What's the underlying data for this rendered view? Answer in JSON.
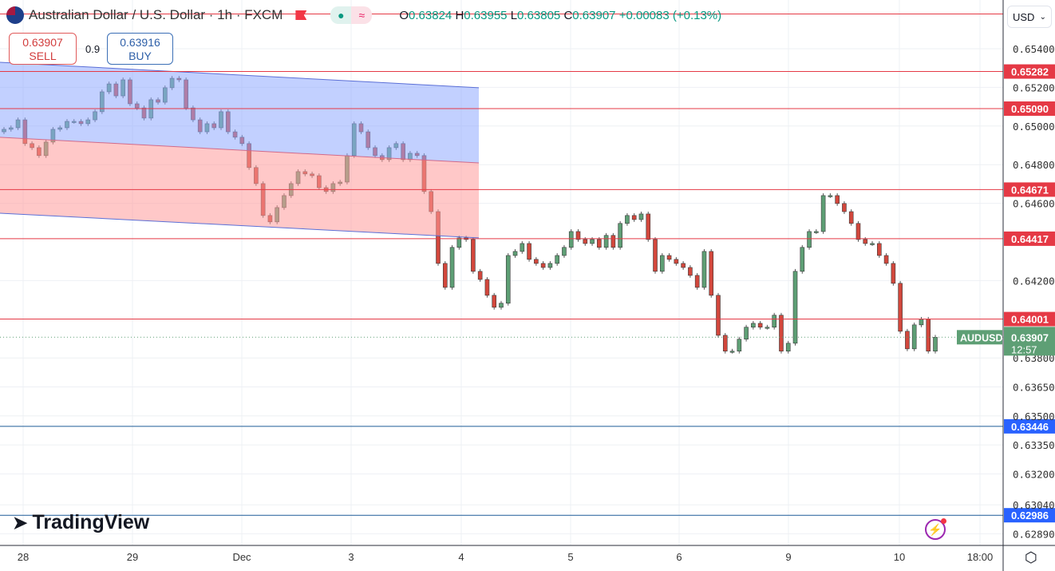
{
  "header": {
    "title": "Australian Dollar / U.S. Dollar · 1h · FXCM",
    "ohlc": {
      "o_label": "O",
      "o": "0.63824",
      "h_label": "H",
      "h": "0.63955",
      "l_label": "L",
      "l": "0.63805",
      "c_label": "C",
      "c": "0.63907",
      "change": "+0.00083 (+0.13%)"
    },
    "status_dot": "●",
    "status_wave": "≈"
  },
  "trade": {
    "sell_price": "0.63907",
    "sell_label": "SELL",
    "spread": "0.9",
    "buy_price": "0.63916",
    "buy_label": "BUY"
  },
  "currency_selector": "USD",
  "branding": "TradingView",
  "icons": {
    "flag": "au-us-flag-icon",
    "bolt": "lightning-icon",
    "settings": "settings-hexagon-icon",
    "dropdown": "chevron-down-icon"
  },
  "chart_data": {
    "type": "candlestick",
    "symbol": "AUDUSD",
    "interval": "1h",
    "colors": {
      "up": "#5e9f75",
      "down": "#d2473c",
      "support": "#2962ff",
      "resistance": "#e53945",
      "last": "#5e9f75"
    },
    "ylim": [
      0.6283,
      0.6561
    ],
    "y_ticks": [
      "0.65400",
      "0.65200",
      "0.65000",
      "0.64800",
      "0.64600",
      "0.64200",
      "0.63800",
      "0.63650",
      "0.63500",
      "0.63350",
      "0.63200",
      "0.63040",
      "0.62890"
    ],
    "x_ticks": [
      "28",
      "29",
      "Dec",
      "3",
      "4",
      "5",
      "6",
      "9",
      "10",
      "18:00"
    ],
    "grid": true,
    "first_open": 0.6497,
    "closes": [
      0.64983,
      0.64991,
      0.65032,
      0.64909,
      0.64888,
      0.64847,
      0.64917,
      0.64983,
      0.64991,
      0.65024,
      0.65024,
      0.65012,
      0.65032,
      0.65074,
      0.65177,
      0.65218,
      0.65156,
      0.65239,
      0.65115,
      0.65094,
      0.65041,
      0.65136,
      0.65123,
      0.65198,
      0.65247,
      0.65239,
      0.65094,
      0.65032,
      0.6497,
      0.65012,
      0.64991,
      0.65074,
      0.6497,
      0.64942,
      0.64909,
      0.64785,
      0.64702,
      0.64537,
      0.64504,
      0.64578,
      0.6464,
      0.64702,
      0.64764,
      0.64752,
      0.64743,
      0.64681,
      0.64661,
      0.64702,
      0.6471,
      0.64847,
      0.65012,
      0.6497,
      0.64888,
      0.64847,
      0.64826,
      0.64888,
      0.64909,
      0.64826,
      0.64859,
      0.64847,
      0.64661,
      0.64557,
      0.64289,
      0.64165,
      0.64372,
      0.64421,
      0.64413,
      0.64248,
      0.64206,
      0.64124,
      0.64062,
      0.64083,
      0.6433,
      0.64351,
      0.64392,
      0.6431,
      0.64289,
      0.64268,
      0.64289,
      0.6433,
      0.64372,
      0.64454,
      0.64413,
      0.64392,
      0.64413,
      0.64372,
      0.64434,
      0.64372,
      0.64496,
      0.64537,
      0.64516,
      0.64545,
      0.64413,
      0.64248,
      0.6433,
      0.6431,
      0.64289,
      0.64268,
      0.64227,
      0.64165,
      0.64351,
      0.64124,
      0.63917,
      0.63835,
      0.63835,
      0.63897,
      0.63959,
      0.63979,
      0.63959,
      0.63959,
      0.64021,
      0.63835,
      0.63876,
      0.64248,
      0.64372,
      0.64454,
      0.64454,
      0.6464,
      0.6464,
      0.64599,
      0.64557,
      0.64496,
      0.64413,
      0.64392,
      0.64392,
      0.6433,
      0.64289,
      0.64186,
      0.63938,
      0.63847,
      0.63971,
      0.64,
      0.63835,
      0.63907
    ],
    "horizontal_levels": [
      {
        "price": 0.6558,
        "label": "",
        "kind": "resistance"
      },
      {
        "price": 0.65282,
        "label": "0.65282",
        "kind": "resistance"
      },
      {
        "price": 0.6509,
        "label": "0.65090",
        "kind": "resistance"
      },
      {
        "price": 0.64671,
        "label": "0.64671",
        "kind": "resistance"
      },
      {
        "price": 0.64417,
        "label": "0.64417",
        "kind": "resistance"
      },
      {
        "price": 0.64001,
        "label": "0.64001",
        "kind": "resistance"
      },
      {
        "price": 0.63446,
        "label": "0.63446",
        "kind": "support"
      },
      {
        "price": 0.62986,
        "label": "0.62986",
        "kind": "support"
      }
    ],
    "channel": {
      "top": [
        0.6533,
        0.65198
      ],
      "mid": [
        0.64942,
        0.64809
      ],
      "bottom": [
        0.64549,
        0.64421
      ],
      "upper_fill": "#8fa9ff",
      "lower_fill": "#ff9a9a"
    },
    "last_price": {
      "symbol_label": "AUDUSD",
      "price": "0.63907",
      "countdown": "12:57"
    }
  }
}
